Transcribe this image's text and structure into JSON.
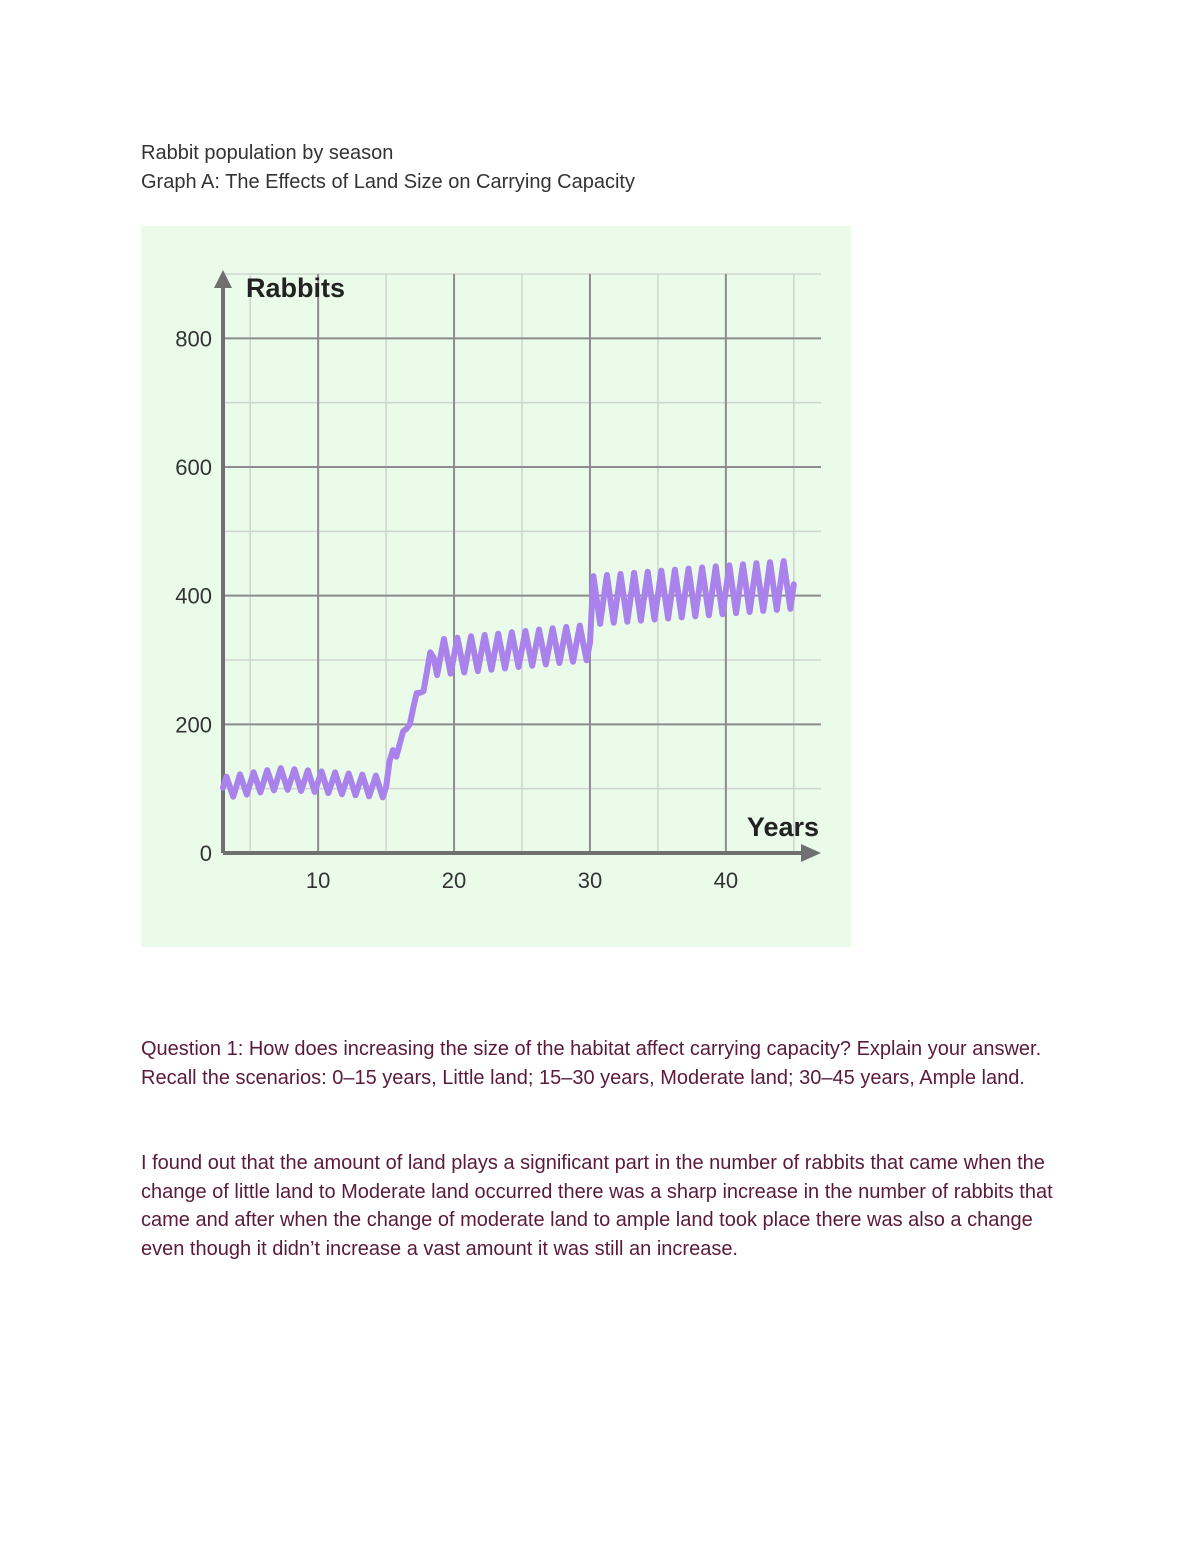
{
  "header": {
    "line1": "Rabbit population by season",
    "line2": "Graph A: The Effects of Land Size on Carrying Capacity"
  },
  "chart_data": {
    "type": "line",
    "title": "",
    "ylabel": "Rabbits",
    "xlabel": "Years",
    "xlim": [
      3,
      47
    ],
    "ylim": [
      0,
      900
    ],
    "x_ticks": [
      10,
      20,
      30,
      40
    ],
    "y_ticks": [
      0,
      200,
      400,
      600,
      800
    ],
    "grid": true,
    "series_color": "#a982ec",
    "background_color": "#eafbea",
    "segments": [
      {
        "x_start": 3,
        "x_end": 15,
        "peak": 118,
        "trough": 85
      },
      {
        "x_start": 18,
        "x_end": 30,
        "peak": 330,
        "trough": 275
      },
      {
        "x_start": 30,
        "x_end": 45,
        "peak": 430,
        "trough": 355
      }
    ],
    "transitions": [
      {
        "x": 15,
        "y": 95
      },
      {
        "x": 15.5,
        "y": 160
      },
      {
        "x": 16.3,
        "y": 175
      },
      {
        "x": 16.8,
        "y": 220
      },
      {
        "x": 17.3,
        "y": 235
      },
      {
        "x": 17.8,
        "y": 270
      },
      {
        "x": 18.3,
        "y": 300
      }
    ],
    "seasonal_cycles_per_year": 1,
    "series": [
      {
        "name": "",
        "values": []
      }
    ]
  },
  "question": {
    "text": "Question 1: How does increasing the size of the habitat affect carrying capacity? Explain your answer. Recall the scenarios: 0–15 years, Little land; 15–30 years, Moderate land; 30–45 years, Ample land."
  },
  "answer": {
    "text": "I found out that the amount of land plays a significant part in the number of rabbits that came when the change of little land to Moderate land occurred there was a sharp increase in the number of rabbits that came and after when the change of moderate land to ample land took place there was also a change even though it didn’t increase a vast amount it was still an increase."
  }
}
